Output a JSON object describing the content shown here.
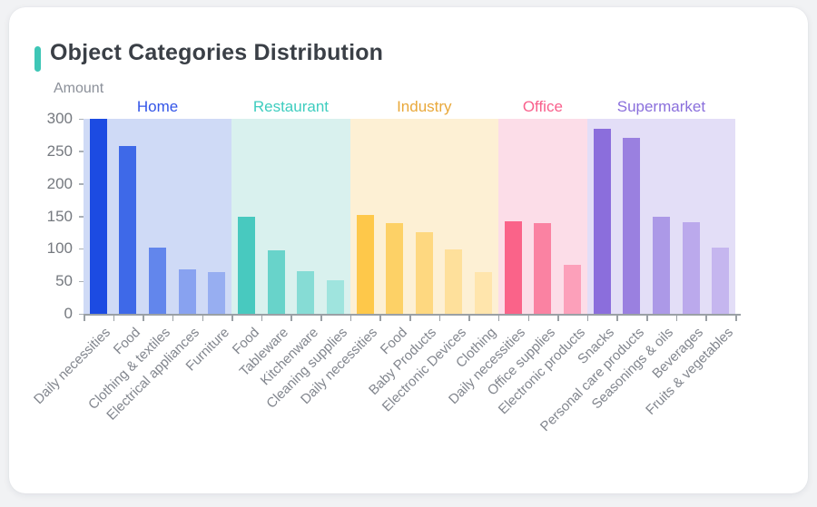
{
  "header": {
    "title": "Object Categories Distribution",
    "accent_color": "#3ec6b6"
  },
  "chart_data": {
    "type": "bar",
    "title": "Object Categories Distribution",
    "xlabel": "",
    "ylabel": "Amount",
    "ylim": [
      0,
      300
    ],
    "yticks": [
      0,
      50,
      100,
      150,
      200,
      250,
      300
    ],
    "grid": false,
    "legend_position": "group-headers-top",
    "axis_color": "#9aa0a5",
    "tick_label_color": "#82868e",
    "groups": [
      {
        "name": "Home",
        "label_color": "#3355e8",
        "band_color": "#cfdaf6",
        "categories": [
          "Daily necessities",
          "Food",
          "Clothing & textiles",
          "Electrical appliances",
          "Furniture"
        ],
        "values": [
          300,
          258,
          102,
          69,
          64
        ],
        "bar_colors": [
          "#1c4be2",
          "#3e69e8",
          "#6286ec",
          "#88a2f0",
          "#97aef1"
        ]
      },
      {
        "name": "Restaurant",
        "label_color": "#3ecdbf",
        "band_color": "#d9f1ee",
        "categories": [
          "Food",
          "Tableware",
          "Kitchenware",
          "Cleaning supplies"
        ],
        "values": [
          149,
          97,
          65,
          52
        ],
        "bar_colors": [
          "#48c9bf",
          "#68d3ca",
          "#86dcd5",
          "#9fe4de"
        ]
      },
      {
        "name": "Industry",
        "label_color": "#e9a83a",
        "band_color": "#fdf0d4",
        "categories": [
          "Daily necessities",
          "Food",
          "Baby Products",
          "Electronic Devices",
          "Clothing"
        ],
        "values": [
          152,
          140,
          126,
          99,
          64
        ],
        "bar_colors": [
          "#fec84a",
          "#fdd166",
          "#fed880",
          "#fee09b",
          "#ffe5ac"
        ]
      },
      {
        "name": "Office",
        "label_color": "#f9608c",
        "band_color": "#fcdde8",
        "categories": [
          "Daily necessities",
          "Office supplies",
          "Electronic products"
        ],
        "values": [
          143,
          140,
          76
        ],
        "bar_colors": [
          "#fa6389",
          "#fa82a2",
          "#fca0ba"
        ]
      },
      {
        "name": "Supermarket",
        "label_color": "#8a6fdc",
        "band_color": "#e3def7",
        "categories": [
          "Snacks",
          "Personal care products",
          "Seasonings & oils",
          "Beverages",
          "Fruits & vegetables"
        ],
        "values": [
          284,
          271,
          149,
          141,
          102
        ],
        "bar_colors": [
          "#8b6edc",
          "#9a80e0",
          "#ac99e7",
          "#bba9ec",
          "#c5b6ef"
        ]
      }
    ]
  }
}
